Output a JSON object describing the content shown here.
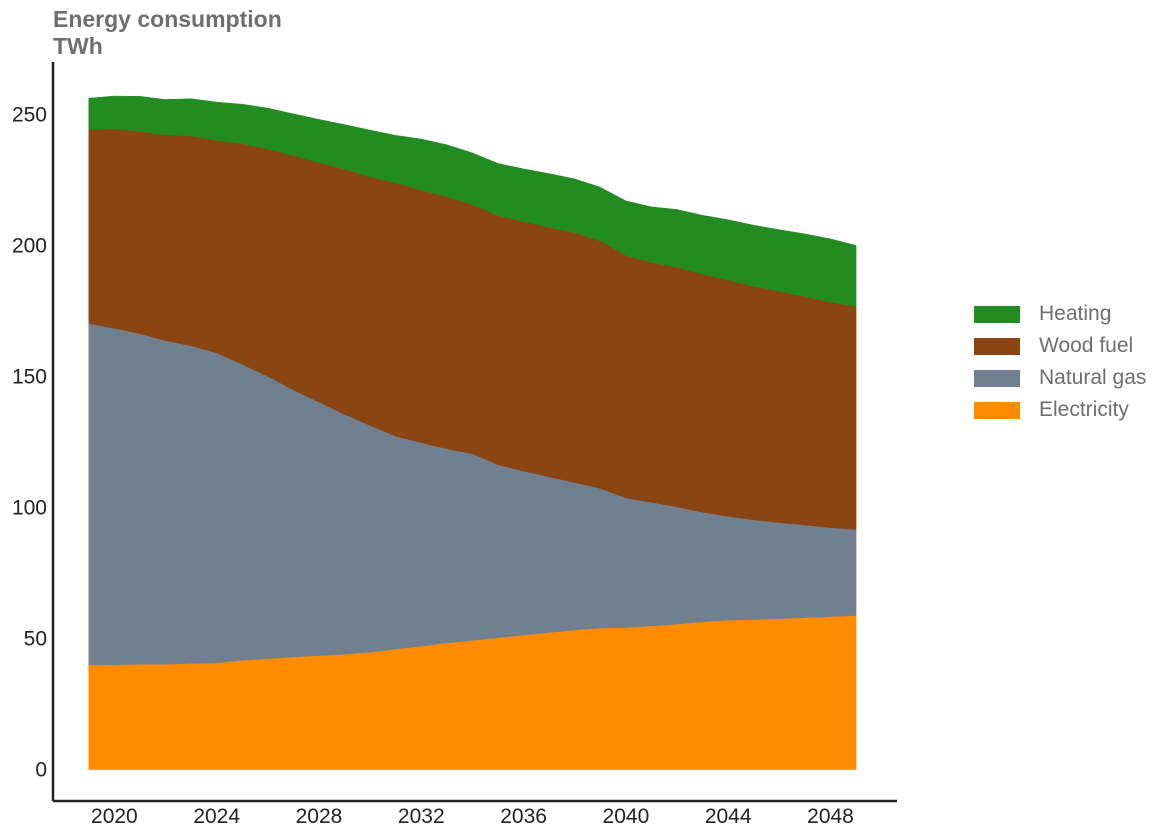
{
  "chart_data": {
    "type": "area",
    "stacked": true,
    "title": "Energy consumption",
    "subtitle": "TWh",
    "xlabel": "",
    "ylabel": "",
    "x": [
      2019,
      2020,
      2021,
      2022,
      2023,
      2024,
      2025,
      2026,
      2027,
      2028,
      2029,
      2030,
      2031,
      2032,
      2033,
      2034,
      2035,
      2036,
      2037,
      2038,
      2039,
      2040,
      2041,
      2042,
      2043,
      2044,
      2045,
      2046,
      2047,
      2048,
      2049
    ],
    "xticks": [
      2020,
      2024,
      2028,
      2032,
      2036,
      2040,
      2044,
      2048
    ],
    "yticks": [
      0,
      50,
      100,
      150,
      200,
      250
    ],
    "xlim": [
      2017.6,
      2050.6
    ],
    "ylim": [
      -12,
      270
    ],
    "grid": false,
    "legend_position": "right",
    "series": [
      {
        "name": "Electricity",
        "color": "#ff8c00",
        "values": [
          40,
          40,
          40.2,
          40.2,
          40.5,
          40.7,
          41.7,
          42.3,
          43,
          43.5,
          44,
          44.8,
          46,
          47.1,
          48.3,
          49.3,
          50.3,
          51.3,
          52.3,
          53.3,
          54,
          54.2,
          54.8,
          55.5,
          56.4,
          57,
          57.2,
          57.6,
          58,
          58.4,
          58.8
        ]
      },
      {
        "name": "Natural gas",
        "color": "#708090",
        "values": [
          130.2,
          128.4,
          126.1,
          123.5,
          121.2,
          118.3,
          112.9,
          107.7,
          101.8,
          96.7,
          91.5,
          86.5,
          81.2,
          77.6,
          74.1,
          71.2,
          66,
          62.6,
          59.4,
          56.2,
          53.3,
          49.4,
          47.2,
          44.7,
          41.8,
          39.6,
          38.1,
          36.6,
          35.3,
          33.9,
          32.8
        ]
      },
      {
        "name": "Wood fuel",
        "color": "#8b4513",
        "values": [
          74,
          76.1,
          77.2,
          78.5,
          80.1,
          81.1,
          84.2,
          86.8,
          89.5,
          91.4,
          93.6,
          94.9,
          96.7,
          96.4,
          96.2,
          95.1,
          95.1,
          95.2,
          95.2,
          95.4,
          94.4,
          92.6,
          91.5,
          91.5,
          90.8,
          90.2,
          89.1,
          88.3,
          87.2,
          86.1,
          85.1
        ]
      },
      {
        "name": "Heating",
        "color": "#228b22",
        "values": [
          12,
          12.5,
          13.4,
          13.5,
          14.2,
          14.6,
          15.1,
          15.6,
          15.9,
          16.5,
          17,
          17.8,
          18.1,
          19.5,
          19.8,
          19.7,
          19.9,
          20.1,
          20.5,
          20.5,
          20.5,
          20.8,
          21.2,
          22,
          22.5,
          23,
          23.3,
          23.5,
          23.9,
          24.1,
          23.3
        ]
      }
    ]
  }
}
